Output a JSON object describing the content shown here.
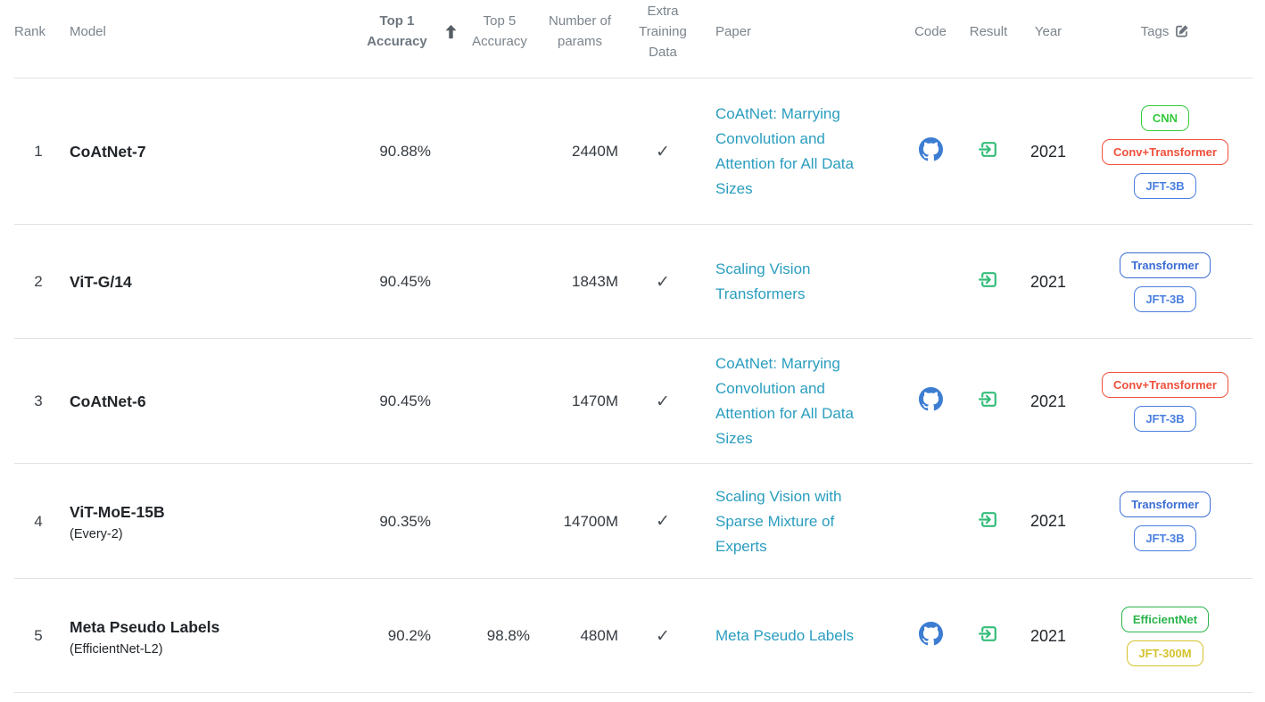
{
  "header": {
    "rank": "Rank",
    "model": "Model",
    "top1": "Top 1 Accuracy",
    "top5": "Top 5 Accuracy",
    "params": "Number of params",
    "extra": "Extra Training Data",
    "paper": "Paper",
    "code": "Code",
    "result": "Result",
    "year": "Year",
    "tags": "Tags",
    "sort_icon": "arrow-up-icon",
    "tags_edit_icon": "edit-icon"
  },
  "colors": {
    "link": "#2a9dbf",
    "github_icon": "#3d7dd2",
    "result_icon": "#35bd7a",
    "header_text": "#7b848c",
    "sort_arrow": "#565e64",
    "edit_icon": "#6c757d",
    "check": "#495057",
    "divider": "#e2e2e2"
  },
  "rows": [
    {
      "rank": "1",
      "model": "CoAtNet-7",
      "model_sub": "",
      "top1": "90.88%",
      "top5": "",
      "params": "2440M",
      "extra_training_data": true,
      "paper": "CoAtNet: Marrying Convolution and Attention for All Data Sizes",
      "has_code": true,
      "has_result": true,
      "year": "2021",
      "tags": [
        {
          "label": "CNN",
          "color": "#33ca3c"
        },
        {
          "label": "Conv+Transformer",
          "color": "#f0503c"
        },
        {
          "label": "JFT-3B",
          "color": "#4a7fe0"
        }
      ]
    },
    {
      "rank": "2",
      "model": "ViT-G/14",
      "model_sub": "",
      "top1": "90.45%",
      "top5": "",
      "params": "1843M",
      "extra_training_data": true,
      "paper": "Scaling Vision Transformers",
      "has_code": false,
      "has_result": true,
      "year": "2021",
      "tags": [
        {
          "label": "Transformer",
          "color": "#3c6dd5"
        },
        {
          "label": "JFT-3B",
          "color": "#4a7fe0"
        }
      ]
    },
    {
      "rank": "3",
      "model": "CoAtNet-6",
      "model_sub": "",
      "top1": "90.45%",
      "top5": "",
      "params": "1470M",
      "extra_training_data": true,
      "paper": "CoAtNet: Marrying Convolution and Attention for All Data Sizes",
      "has_code": true,
      "has_result": true,
      "year": "2021",
      "tags": [
        {
          "label": "Conv+Transformer",
          "color": "#f0503c"
        },
        {
          "label": "JFT-3B",
          "color": "#4a7fe0"
        }
      ]
    },
    {
      "rank": "4",
      "model": "ViT-MoE-15B",
      "model_sub": "(Every-2)",
      "top1": "90.35%",
      "top5": "",
      "params": "14700M",
      "extra_training_data": true,
      "paper": "Scaling Vision with Sparse Mixture of Experts",
      "has_code": false,
      "has_result": true,
      "year": "2021",
      "tags": [
        {
          "label": "Transformer",
          "color": "#3c6dd5"
        },
        {
          "label": "JFT-3B",
          "color": "#4a7fe0"
        }
      ]
    },
    {
      "rank": "5",
      "model": "Meta Pseudo Labels",
      "model_sub": "(EfficientNet-L2)",
      "top1": "90.2%",
      "top5": "98.8%",
      "params": "480M",
      "extra_training_data": true,
      "paper": "Meta Pseudo Labels",
      "has_code": true,
      "has_result": true,
      "year": "2021",
      "tags": [
        {
          "label": "EfficientNet",
          "color": "#2bb54c"
        },
        {
          "label": "JFT-300M",
          "color": "#d4c22c"
        }
      ]
    }
  ]
}
